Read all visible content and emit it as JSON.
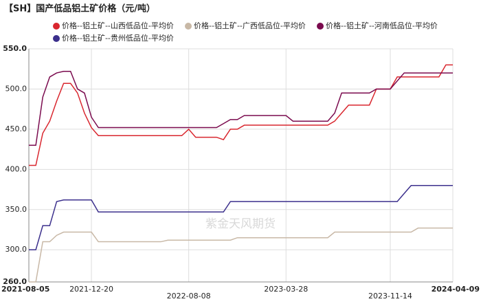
{
  "chart_data": {
    "type": "line",
    "title": "【SH】国产低品铝土矿价格（元/吨）",
    "watermark": "紫金天风期货",
    "categories": [
      "2021-08-05",
      null,
      null,
      null,
      null,
      null,
      null,
      null,
      null,
      "2021-12-20",
      null,
      null,
      null,
      null,
      null,
      null,
      null,
      null,
      null,
      null,
      null,
      null,
      null,
      "2022-08-08",
      null,
      null,
      null,
      null,
      null,
      null,
      null,
      null,
      null,
      null,
      null,
      null,
      null,
      "2023-03-28",
      null,
      null,
      null,
      null,
      null,
      null,
      null,
      null,
      null,
      null,
      null,
      null,
      null,
      null,
      "2023-11-14",
      null,
      null,
      null,
      null,
      null,
      null,
      null,
      null,
      "2024-04-09"
    ],
    "series": [
      {
        "name": "价格--铝土矿--山西低品位-平均价",
        "color": "#d9262e",
        "values": [
          405,
          405,
          445,
          460,
          485,
          507,
          507,
          495,
          470,
          452,
          442,
          442,
          442,
          442,
          442,
          442,
          442,
          442,
          442,
          442,
          442,
          442,
          442,
          450,
          440,
          440,
          440,
          440,
          437,
          450,
          450,
          455,
          455,
          455,
          455,
          455,
          455,
          455,
          455,
          455,
          455,
          455,
          455,
          455,
          460,
          470,
          480,
          480,
          480,
          480,
          500,
          500,
          500,
          515,
          515,
          515,
          515,
          515,
          515,
          515,
          530,
          530
        ]
      },
      {
        "name": "价格--铝土矿--广西低品位-平均价",
        "color": "#c8b8a6",
        "values": [
          260,
          260,
          310,
          310,
          318,
          322,
          322,
          322,
          322,
          322,
          310,
          310,
          310,
          310,
          310,
          310,
          310,
          310,
          310,
          310,
          312,
          312,
          312,
          312,
          312,
          312,
          312,
          312,
          312,
          312,
          315,
          315,
          315,
          315,
          315,
          315,
          315,
          315,
          315,
          315,
          315,
          315,
          315,
          315,
          322,
          322,
          322,
          322,
          322,
          322,
          322,
          322,
          322,
          322,
          322,
          322,
          327,
          327,
          327,
          327,
          327,
          327
        ]
      },
      {
        "name": "价格--铝土矿--河南低品位-平均价",
        "color": "#7a0a4e",
        "values": [
          430,
          430,
          490,
          515,
          520,
          522,
          522,
          500,
          495,
          465,
          452,
          452,
          452,
          452,
          452,
          452,
          452,
          452,
          452,
          452,
          452,
          452,
          452,
          452,
          452,
          452,
          452,
          452,
          457,
          462,
          462,
          467,
          467,
          467,
          467,
          467,
          467,
          467,
          460,
          460,
          460,
          460,
          460,
          460,
          470,
          495,
          495,
          495,
          495,
          495,
          500,
          500,
          500,
          510,
          520,
          520,
          520,
          520,
          520,
          520,
          520,
          520
        ]
      },
      {
        "name": "价格--铝土矿--贵州低品位-平均价",
        "color": "#3b2f8c",
        "values": [
          300,
          300,
          330,
          330,
          360,
          362,
          362,
          362,
          362,
          362,
          347,
          347,
          347,
          347,
          347,
          347,
          347,
          347,
          347,
          347,
          347,
          347,
          347,
          347,
          347,
          347,
          347,
          347,
          347,
          360,
          360,
          360,
          360,
          360,
          360,
          360,
          360,
          360,
          360,
          360,
          360,
          360,
          360,
          360,
          360,
          360,
          360,
          360,
          360,
          360,
          360,
          360,
          360,
          360,
          370,
          380,
          380,
          380,
          380,
          380,
          380,
          380
        ]
      }
    ],
    "ylim": [
      260,
      550
    ],
    "yticks": [
      {
        "value": 260,
        "label": "260.0"
      },
      {
        "value": 300,
        "label": "300.0"
      },
      {
        "value": 350,
        "label": "350.0"
      },
      {
        "value": 400,
        "label": "400.0"
      },
      {
        "value": 450,
        "label": "450.0"
      },
      {
        "value": 500,
        "label": "500.0"
      },
      {
        "value": 550,
        "label": "550.0"
      }
    ],
    "grid": true
  }
}
